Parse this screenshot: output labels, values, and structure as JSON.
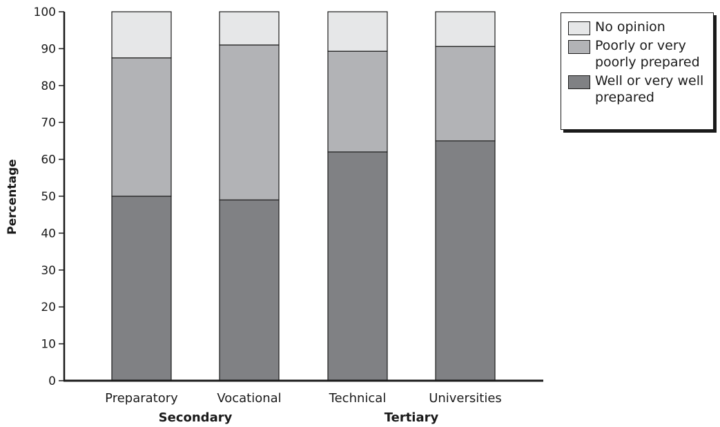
{
  "chart_data": {
    "type": "bar",
    "stacked": true,
    "categories": [
      "Preparatory",
      "Vocational",
      "Technical",
      "Universities"
    ],
    "groups": [
      {
        "label": "Secondary",
        "categories": [
          "Preparatory",
          "Vocational"
        ]
      },
      {
        "label": "Tertiary",
        "categories": [
          "Technical",
          "Universities"
        ]
      }
    ],
    "series": [
      {
        "name": "Well or very well prepared",
        "values": [
          50,
          49,
          62,
          65
        ],
        "color": "#808184"
      },
      {
        "name": "Poorly or very poorly prepared",
        "values": [
          37.5,
          42,
          27.3,
          25.6
        ],
        "color": "#b2b3b6"
      },
      {
        "name": "No opinion",
        "values": [
          12.5,
          9,
          10.7,
          9.4
        ],
        "color": "#e6e7e8"
      }
    ],
    "ylabel": "Percentage",
    "xlabel": "",
    "ylim": [
      0,
      100
    ],
    "yticks": [
      0,
      10,
      20,
      30,
      40,
      50,
      60,
      70,
      80,
      90,
      100
    ],
    "grid": false,
    "legend_position": "top-right"
  },
  "legend": {
    "items": [
      {
        "text": "No opinion",
        "color": "#e6e7e8"
      },
      {
        "text": "Poorly or very poorly prepared",
        "color": "#b2b3b6"
      },
      {
        "text": "Well or very well prepared",
        "color": "#808184"
      }
    ]
  }
}
